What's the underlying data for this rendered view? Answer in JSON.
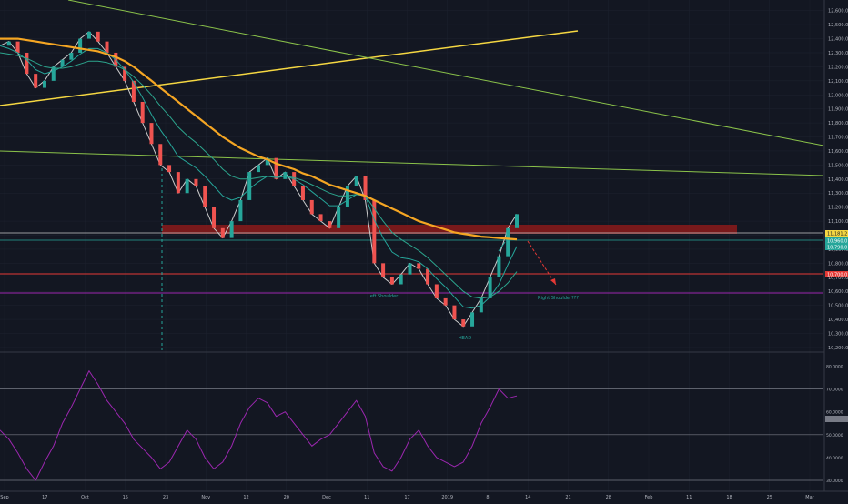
{
  "colors": {
    "background": "#131722",
    "grid": "#1e2330",
    "candle_up": "#26a69a",
    "candle_down": "#ef5350",
    "price_line": "#cccccc",
    "ema_fast": "#26a69a",
    "ema_slow": "#f5a623",
    "ma_mid": "#2ca58d",
    "rsi_line": "#9c27b0",
    "resistance_zone": "#8b1a1a",
    "support_red": "#e53935",
    "support_purple": "#9c27b0",
    "trend_yellow": "#f5d742",
    "trend_green": "#8bc34a",
    "axis_text": "#b2b5be"
  },
  "chart_data": [
    {
      "type": "line",
      "panel": "price",
      "x_labels": [
        "Sep",
        "17",
        "Oct",
        "15",
        "23",
        "Nov",
        "12",
        "20",
        "Dec",
        "11",
        "17",
        "2019",
        "8",
        "14",
        "21",
        "28",
        "Feb",
        "11",
        "18",
        "25",
        "Mar"
      ],
      "y_ticks": [
        12600,
        12500,
        12400,
        12300,
        12200,
        12100,
        12000,
        11900,
        11800,
        11700,
        11600,
        11500,
        11400,
        11300,
        11200,
        11100,
        11000,
        10900,
        10800,
        10700,
        10600,
        10500,
        10400,
        10300,
        10200
      ],
      "ylim": [
        10180,
        12650
      ],
      "price_labels": {
        "current": "11,181.2",
        "level_a": "10,960.0",
        "level_b": "10,790.0",
        "level_c": "10,700.0"
      },
      "series": [
        {
          "values": [
            12350,
            12380,
            12300,
            12150,
            12050,
            12100,
            12200,
            12250,
            12300,
            12400,
            12450,
            12380,
            12300,
            12200,
            12100,
            11950,
            11800,
            11650,
            11500,
            11450,
            11300,
            11400,
            11350,
            11200,
            11050,
            10980,
            11100,
            11250,
            11450,
            11500,
            11550,
            11400,
            11450,
            11350,
            11250,
            11150,
            11100,
            11050,
            11200,
            11350,
            11420,
            11250,
            10800,
            10700,
            10650,
            10720,
            10800,
            10760,
            10650,
            10550,
            10500,
            10400,
            10350,
            10450,
            10550,
            10700,
            10850,
            11050,
            11150
          ]
        },
        {
          "values": [
            12350,
            12330,
            12300,
            12250,
            12180,
            12150,
            12170,
            12200,
            12240,
            12290,
            12330,
            12330,
            12300,
            12250,
            12180,
            12090,
            11980,
            11860,
            11750,
            11660,
            11560,
            11520,
            11480,
            11420,
            11350,
            11280,
            11250,
            11270,
            11330,
            11380,
            11420,
            11410,
            11420,
            11400,
            11360,
            11310,
            11260,
            11210,
            11210,
            11250,
            11290,
            11280,
            11110,
            10980,
            10880,
            10840,
            10830,
            10810,
            10760,
            10690,
            10630,
            10560,
            10490,
            10480,
            10500,
            10560,
            10650,
            10790,
            10920
          ]
        },
        {
          "values": [
            12300,
            12290,
            12280,
            12260,
            12230,
            12200,
            12190,
            12190,
            12200,
            12220,
            12240,
            12240,
            12230,
            12210,
            12180,
            12130,
            12070,
            12000,
            11920,
            11850,
            11770,
            11710,
            11660,
            11600,
            11540,
            11470,
            11420,
            11400,
            11400,
            11410,
            11420,
            11420,
            11420,
            11410,
            11390,
            11360,
            11330,
            11300,
            11280,
            11280,
            11290,
            11280,
            11190,
            11100,
            11020,
            10970,
            10930,
            10890,
            10840,
            10780,
            10720,
            10660,
            10600,
            10560,
            10550,
            10560,
            10600,
            10660,
            10740
          ]
        },
        {
          "values": [
            12400,
            12400,
            12400,
            12390,
            12380,
            12370,
            12360,
            12350,
            12340,
            12330,
            12320,
            12310,
            12290,
            12270,
            12240,
            12200,
            12150,
            12100,
            12050,
            12000,
            11950,
            11900,
            11850,
            11800,
            11750,
            11700,
            11660,
            11620,
            11590,
            11560,
            11540,
            11510,
            11490,
            11470,
            11440,
            11420,
            11390,
            11360,
            11340,
            11320,
            11300,
            11280,
            11250,
            11220,
            11190,
            11160,
            11130,
            11100,
            11080,
            11060,
            11040,
            11020,
            11010,
            11000,
            10990,
            10985,
            10980,
            10975,
            10970
          ]
        }
      ],
      "annotations": [
        "Left Shoulder",
        "HEAD",
        "Right Shoulder???"
      ]
    },
    {
      "type": "line",
      "panel": "rsi",
      "y_ticks": [
        80,
        70,
        60,
        50,
        40,
        30
      ],
      "y_tick_labels": [
        "80.0000",
        "70.0000",
        "60.0000",
        "50.0000",
        "40.0000",
        "30.0000"
      ],
      "ylim": [
        26,
        85
      ],
      "levels": [
        70,
        50,
        30
      ],
      "series": [
        {
          "values": [
            52,
            48,
            42,
            35,
            30,
            38,
            45,
            55,
            62,
            70,
            78,
            72,
            65,
            60,
            55,
            48,
            44,
            40,
            35,
            38,
            45,
            52,
            48,
            40,
            35,
            38,
            45,
            55,
            62,
            66,
            64,
            58,
            60,
            55,
            50,
            45,
            48,
            50,
            55,
            60,
            65,
            58,
            42,
            36,
            34,
            40,
            48,
            52,
            45,
            40,
            38,
            36,
            38,
            45,
            55,
            62,
            70,
            66,
            67
          ]
        }
      ]
    }
  ]
}
